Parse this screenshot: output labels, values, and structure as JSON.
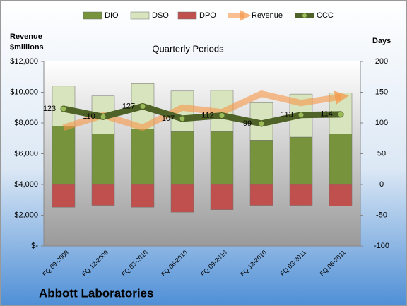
{
  "chart_data": {
    "type": "bar",
    "title": "Quarterly Periods",
    "ylabel": [
      "Revenue",
      "$millions"
    ],
    "y2label": "Days",
    "footer": "Abbott Laboratories",
    "categories": [
      "FQ 09-2009",
      "FQ 12-2009",
      "FQ 03-2010",
      "FQ 06-2010",
      "FQ 09-2010",
      "FQ 12-2010",
      "FQ 03-2011",
      "FQ 06-2011"
    ],
    "series": [
      {
        "name": "DIO",
        "type": "bar",
        "axis": "y2",
        "color": "#77933c",
        "values": [
          95,
          82,
          90,
          86,
          86,
          72,
          77,
          82
        ]
      },
      {
        "name": "DSO",
        "type": "bar",
        "axis": "y2",
        "color": "#d7e4bd",
        "values": [
          65,
          62,
          74,
          66,
          67,
          61,
          70,
          67
        ]
      },
      {
        "name": "DPO",
        "type": "bar",
        "axis": "y2",
        "color": "#c0504d",
        "values": [
          -37,
          -34,
          -37,
          -45,
          -41,
          -34,
          -34,
          -35
        ]
      },
      {
        "name": "Revenue",
        "type": "arrow",
        "color": "#f79646",
        "values": [
          7700,
          8500,
          7700,
          9000,
          8700,
          9900,
          9300,
          9700
        ]
      },
      {
        "name": "CCC",
        "type": "line",
        "axis": "y2",
        "color": "#4f6228",
        "values": [
          123,
          110,
          127,
          107,
          112,
          99,
          113,
          114
        ]
      }
    ],
    "ylim": [
      0,
      12000
    ],
    "yticks": [
      {
        "value": 0,
        "label": "$-"
      },
      {
        "value": 2000,
        "label": "$2,000"
      },
      {
        "value": 4000,
        "label": "$4,000"
      },
      {
        "value": 6000,
        "label": "$6,000"
      },
      {
        "value": 8000,
        "label": "$8,000"
      },
      {
        "value": 10000,
        "label": "$10,000"
      },
      {
        "value": 12000,
        "label": "$12,000"
      }
    ],
    "y2lim": [
      -100,
      200
    ],
    "y2ticks": [
      -100,
      -50,
      0,
      50,
      100,
      150,
      200
    ]
  }
}
